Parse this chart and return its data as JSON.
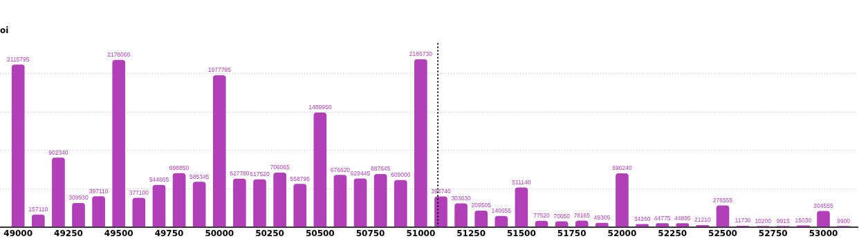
{
  "chart_data": {
    "type": "bar",
    "title": "oi",
    "x": [
      49000,
      49100,
      49200,
      49300,
      49400,
      49500,
      49600,
      49700,
      49800,
      49900,
      50000,
      50100,
      50200,
      50300,
      50400,
      50500,
      50600,
      50700,
      50800,
      50900,
      51000,
      51100,
      51200,
      51300,
      51400,
      51500,
      51600,
      51700,
      51800,
      51900,
      52000,
      52100,
      52200,
      52300,
      52400,
      52500,
      52600,
      52700,
      52800,
      52900,
      53000,
      53100
    ],
    "values": [
      2115795,
      157110,
      902340,
      309930,
      397110,
      2178060,
      377100,
      544665,
      698850,
      585345,
      1977795,
      627780,
      617520,
      706065,
      558795,
      1489950,
      676620,
      629445,
      687645,
      609000,
      2186730,
      394740,
      303630,
      209505,
      140655,
      511140,
      77520,
      70650,
      78165,
      49305,
      696240,
      34260,
      44775,
      44895,
      21210,
      276555,
      11730,
      10200,
      9915,
      15030,
      204555,
      9900
    ],
    "color": "#b03fb8",
    "xlim": [
      48910,
      53170
    ],
    "xticks": [
      49000,
      49250,
      49500,
      49750,
      50000,
      50250,
      50500,
      50750,
      51000,
      51250,
      51500,
      51750,
      52000,
      52250,
      52500,
      52750,
      53000
    ],
    "ylim": [
      0,
      2400000
    ],
    "yticks": [
      {
        "value": 0,
        "label": null
      },
      {
        "value": 500000,
        "label": null
      },
      {
        "value": 1000000,
        "label": null
      },
      {
        "value": 1500000,
        "label": null
      },
      {
        "value": 2000000,
        "label": null
      }
    ],
    "tick_labels": "x",
    "grid": "y",
    "data_labels": true,
    "ref_lines": [
      {
        "axis": "x",
        "value": 51085,
        "color": "#000000",
        "line_style": "dotted"
      }
    ]
  }
}
